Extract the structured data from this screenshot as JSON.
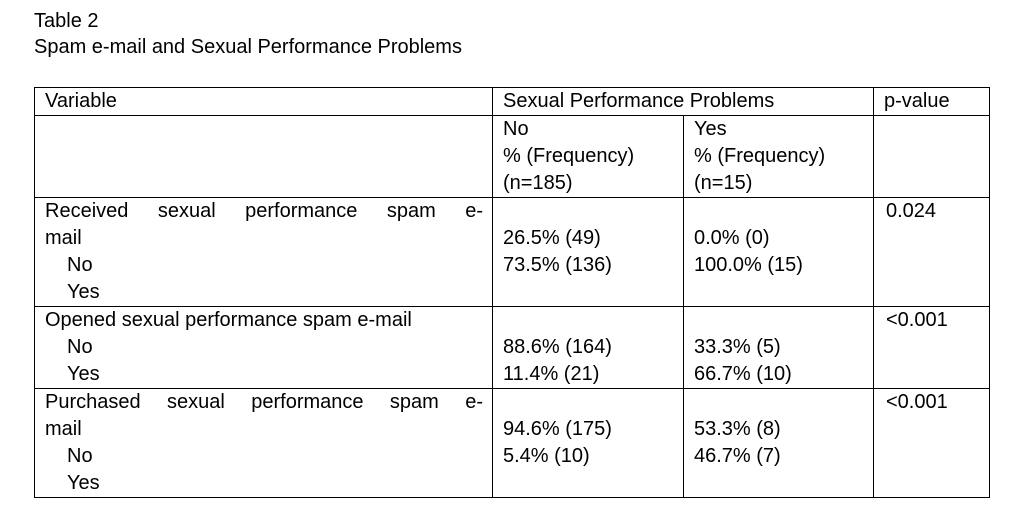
{
  "caption": {
    "table_number": "Table 2",
    "title": "Spam e-mail and Sexual Performance Problems"
  },
  "headers": {
    "variable": "Variable",
    "group": "Sexual Performance Problems",
    "pvalue": "p-value"
  },
  "subheaders": {
    "no": {
      "label": "No",
      "measure": "% (Frequency)",
      "n": "(n=185)"
    },
    "yes": {
      "label": "Yes",
      "measure": "% (Frequency)",
      "n": "(n=15)"
    }
  },
  "rows": [
    {
      "variable_line1": "Received sexual performance spam e-",
      "variable_line2": "mail",
      "level_no": "No",
      "level_yes": "Yes",
      "no_col": {
        "no": "26.5% (49)",
        "yes": "73.5% (136)"
      },
      "yes_col": {
        "no": "0.0% (0)",
        "yes": "100.0% (15)"
      },
      "pvalue": "0.024"
    },
    {
      "variable_line1": "Opened sexual performance spam e-mail",
      "level_no": "No",
      "level_yes": "Yes",
      "no_col": {
        "no": "88.6% (164)",
        "yes": "11.4% (21)"
      },
      "yes_col": {
        "no": "33.3% (5)",
        "yes": "66.7% (10)"
      },
      "pvalue": "<0.001"
    },
    {
      "variable_line1": "Purchased sexual performance spam e-",
      "variable_line2": "mail",
      "level_no": "No",
      "level_yes": "Yes",
      "no_col": {
        "no": "94.6% (175)",
        "yes": "5.4% (10)"
      },
      "yes_col": {
        "no": "53.3% (8)",
        "yes": "46.7% (7)"
      },
      "pvalue": "<0.001"
    }
  ]
}
